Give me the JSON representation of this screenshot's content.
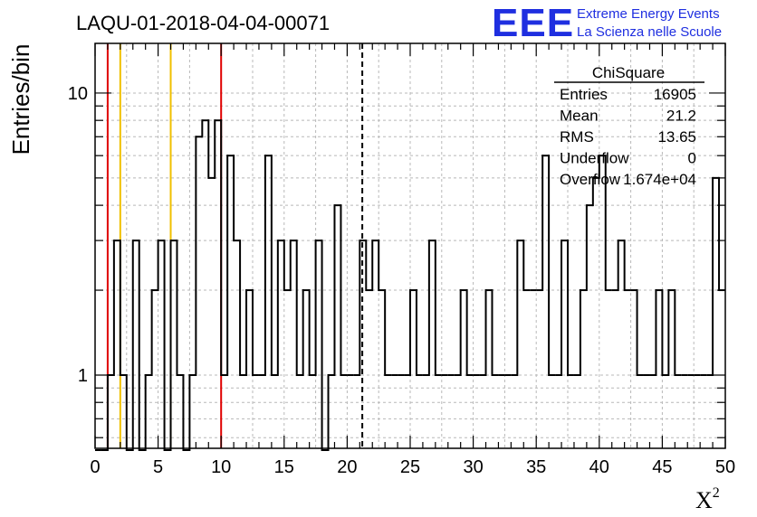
{
  "title": "LAQU-01-2018-04-04-00071",
  "logo": {
    "mark": "EEE",
    "line1": "Extreme Energy Events",
    "line2": "La Scienza nelle Scuole"
  },
  "chart_data": {
    "type": "bar",
    "style": "step-histogram",
    "ylabel": "Entries/bin",
    "xlabel": "X",
    "xlabel_superscript": "2",
    "xlim": [
      0,
      50
    ],
    "ylim": [
      0.55,
      15
    ],
    "yscale": "log",
    "grid": true,
    "bin_width": 0.5,
    "x_ticks": [
      "0",
      "5",
      "10",
      "15",
      "20",
      "25",
      "30",
      "35",
      "40",
      "45",
      "50"
    ],
    "y_ticks": [
      "1",
      "10"
    ],
    "values": [
      0,
      0,
      1,
      3,
      1,
      0,
      3,
      0,
      1,
      2,
      3,
      0,
      3,
      1,
      0,
      1,
      7,
      8,
      5,
      8,
      1,
      6,
      3,
      1,
      2,
      1,
      1,
      6,
      1,
      3,
      2,
      3,
      1,
      2,
      1,
      3,
      0,
      1,
      4,
      1,
      1,
      1,
      3,
      2,
      3,
      2,
      1,
      1,
      1,
      1,
      2,
      1,
      1,
      3,
      1,
      1,
      1,
      1,
      2,
      1,
      1,
      1,
      2,
      1,
      1,
      1,
      1,
      3,
      2,
      2,
      2,
      6,
      1,
      1,
      3,
      1,
      1,
      2,
      4,
      5,
      6,
      2,
      2,
      3,
      2,
      2,
      1,
      1,
      1,
      2,
      1,
      2,
      1,
      1,
      1,
      1,
      1,
      1,
      5,
      2
    ],
    "vlines": [
      {
        "x": 1,
        "color": "#e00000",
        "style": "solid"
      },
      {
        "x": 2,
        "color": "#f0c000",
        "style": "solid"
      },
      {
        "x": 6,
        "color": "#f0c000",
        "style": "solid"
      },
      {
        "x": 10,
        "color": "#e00000",
        "style": "solid"
      },
      {
        "x": 21.2,
        "color": "#000000",
        "style": "dashed"
      }
    ],
    "stats": {
      "name": "ChiSquare",
      "rows": [
        {
          "label": "Entries",
          "value": "16905"
        },
        {
          "label": "Mean",
          "value": "21.2"
        },
        {
          "label": "RMS",
          "value": "13.65"
        },
        {
          "label": "Underflow",
          "value": "0"
        },
        {
          "label": "Overflow",
          "value": "1.674e+04"
        }
      ]
    }
  }
}
